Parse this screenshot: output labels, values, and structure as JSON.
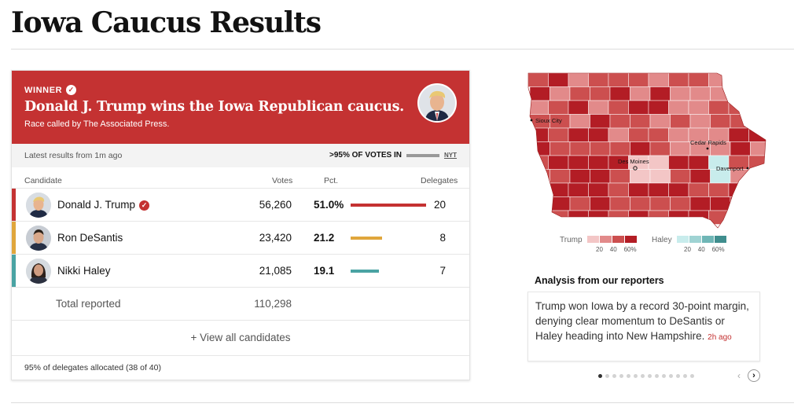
{
  "page": {
    "title": "Iowa Caucus Results"
  },
  "banner": {
    "winner_label": "WINNER",
    "headline": "Donald J. Trump wins the Iowa Republican caucus.",
    "called_by": "Race called by The Associated Press."
  },
  "status": {
    "latest": "Latest results from 1m ago",
    "votes_in": ">95% OF VOTES IN",
    "source": "NYT"
  },
  "table": {
    "headers": {
      "candidate": "Candidate",
      "votes": "Votes",
      "pct": "Pct.",
      "delegates": "Delegates"
    },
    "rows": [
      {
        "name": "Donald J. Trump",
        "votes": "56,260",
        "pct": "51.0%",
        "pct_value": 51.0,
        "delegates": "20",
        "color": "#c43232",
        "winner": true
      },
      {
        "name": "Ron DeSantis",
        "votes": "23,420",
        "pct": "21.2",
        "pct_value": 21.2,
        "delegates": "8",
        "color": "#e0a63c",
        "winner": false
      },
      {
        "name": "Nikki Haley",
        "votes": "21,085",
        "pct": "19.1",
        "pct_value": 19.1,
        "delegates": "7",
        "color": "#4aa3a3",
        "winner": false
      }
    ],
    "total_label": "Total reported",
    "total_votes": "110,298",
    "view_all": "+ View all candidates",
    "footer": "95% of delegates allocated (38 of 40)"
  },
  "map": {
    "cities": [
      "Sioux City",
      "Cedar Rapids",
      "Des Moines",
      "Davenport"
    ],
    "legend": {
      "trump_label": "Trump",
      "haley_label": "Haley",
      "ticks": [
        "20",
        "40",
        "60%"
      ],
      "trump_colors": [
        "#f3c6c6",
        "#e28a8a",
        "#cc4f4f",
        "#b31d25"
      ],
      "haley_colors": [
        "#c8ecec",
        "#9fd3d3",
        "#6fb6b6",
        "#3f8e8e"
      ]
    }
  },
  "analysis": {
    "title": "Analysis from our reporters",
    "text": "Trump won Iowa by a record 30-point margin, denying clear momentum to DeSantis or Haley heading into New Hampshire.",
    "time": "2h ago"
  },
  "carousel": {
    "active_index": 0,
    "count": 14
  }
}
